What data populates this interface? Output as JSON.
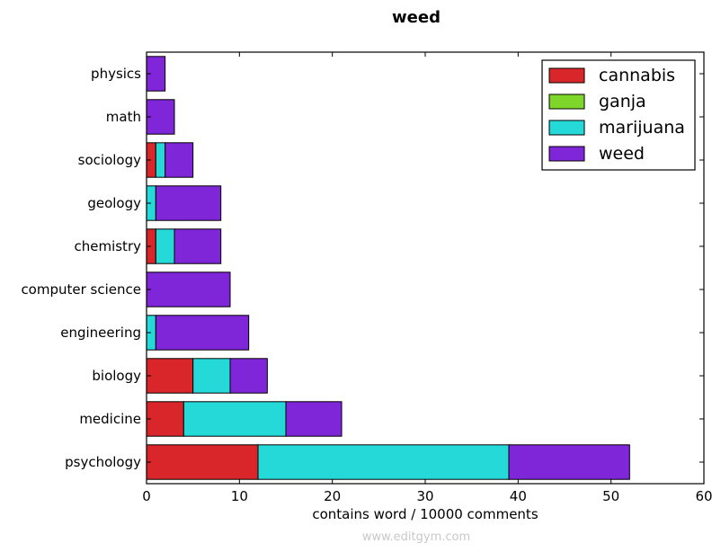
{
  "chart_data": {
    "type": "bar",
    "orientation": "horizontal",
    "stacked": true,
    "title": "weed",
    "xlabel": "contains word / 10000 comments",
    "ylabel": "",
    "xlim": [
      0,
      60
    ],
    "xticks": [
      0,
      10,
      20,
      30,
      40,
      50,
      60
    ],
    "grid": false,
    "legend_position": "top-right",
    "categories": [
      "psychology",
      "medicine",
      "biology",
      "engineering",
      "computer science",
      "chemistry",
      "geology",
      "sociology",
      "math",
      "physics"
    ],
    "series": [
      {
        "name": "cannabis",
        "color": "#d9262a",
        "values": [
          12,
          4,
          5,
          0,
          0,
          1,
          0,
          1,
          0,
          0
        ]
      },
      {
        "name": "ganja",
        "color": "#7ed62a",
        "values": [
          0,
          0,
          0,
          0,
          0,
          0,
          0,
          0,
          0,
          0
        ]
      },
      {
        "name": "marijuana",
        "color": "#26d9d9",
        "values": [
          27,
          11,
          4,
          1,
          0,
          2,
          1,
          1,
          0,
          0
        ]
      },
      {
        "name": "weed",
        "color": "#7f26d9",
        "values": [
          13,
          6,
          4,
          10,
          9,
          5,
          7,
          3,
          3,
          2
        ]
      }
    ]
  },
  "watermark": "www.editgym.com"
}
